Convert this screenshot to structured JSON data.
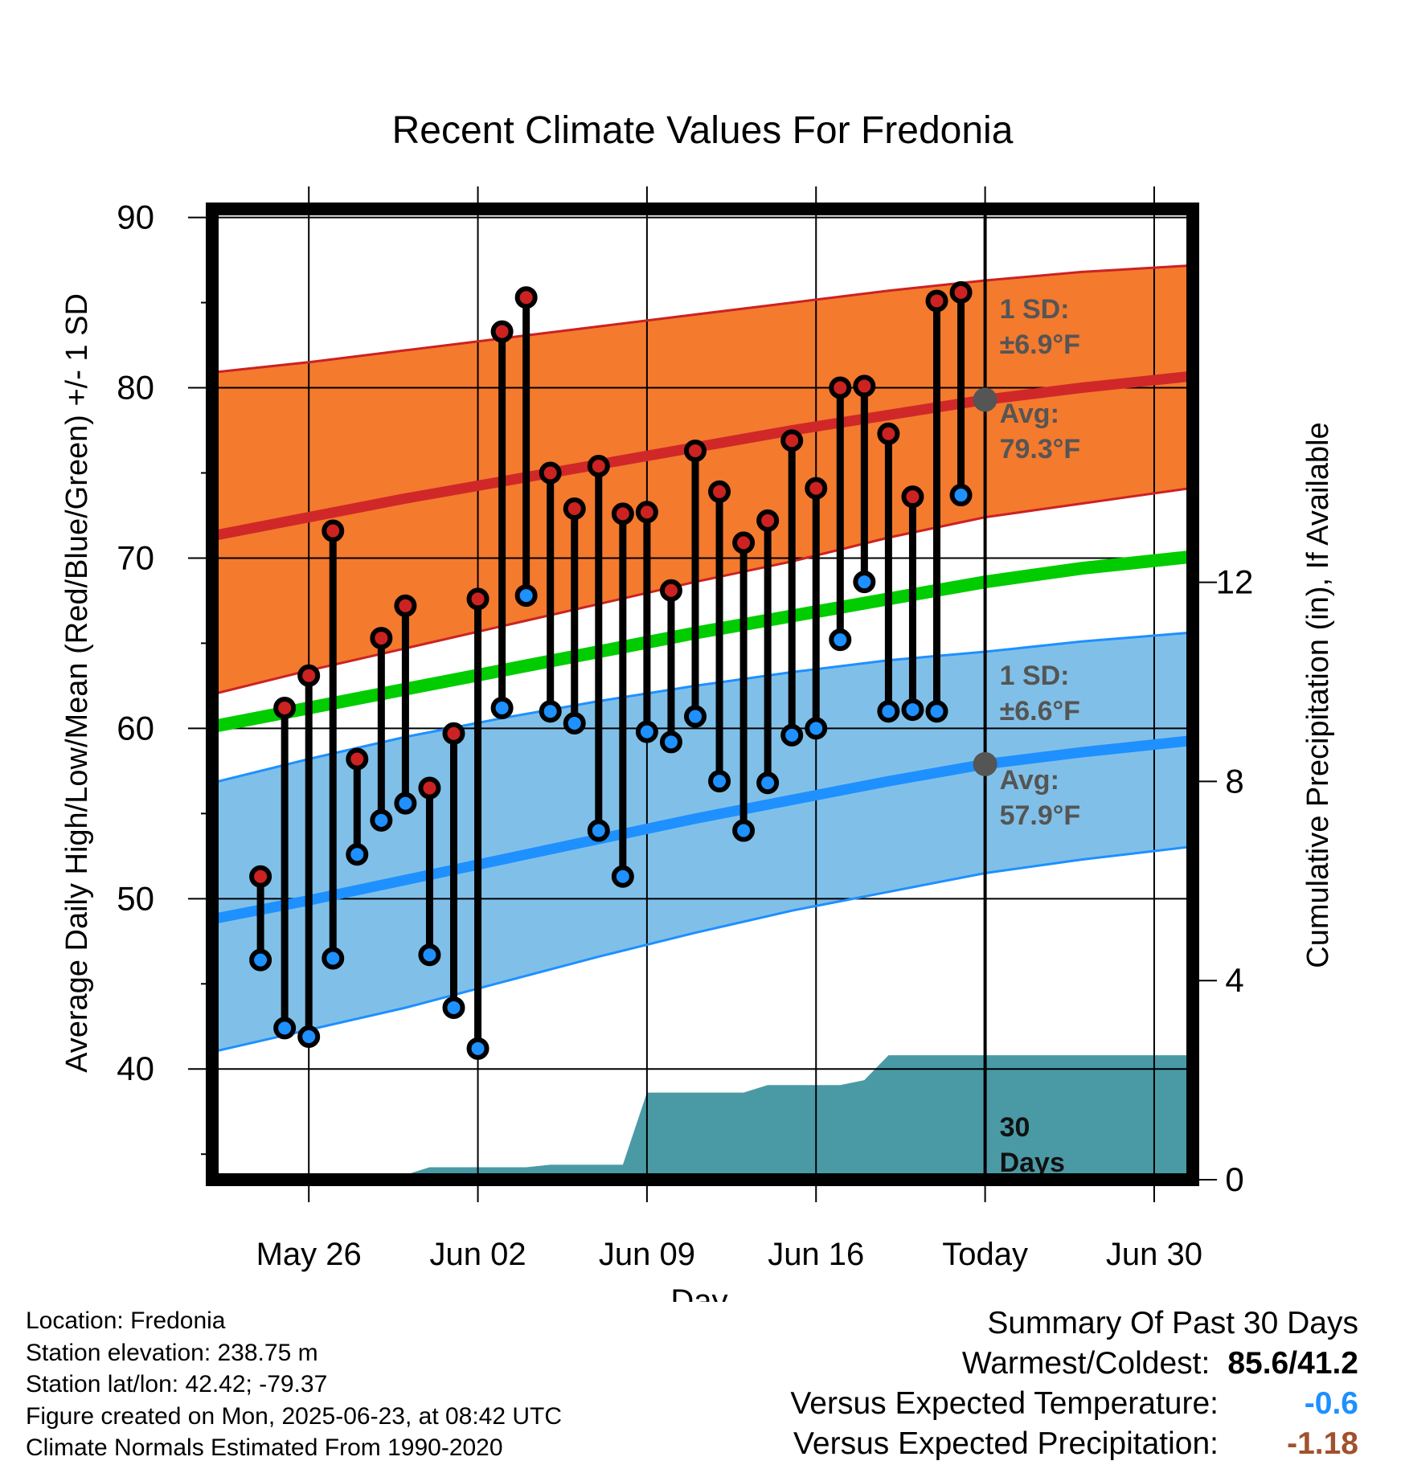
{
  "chart_data": {
    "type": "line",
    "title": "Recent Climate Values For Fredonia",
    "xlabel": "Day",
    "ylabel": "Average Daily High/Low/Mean (Red/Blue/Green) +/- 1 SD",
    "y2label": "Cumulative Precipitation (in), If Available",
    "ylim": [
      33.5,
      90.5
    ],
    "y_ticks": [
      40,
      50,
      60,
      70,
      80,
      90
    ],
    "y2lim": [
      0,
      19.5
    ],
    "y2_ticks": [
      0,
      4,
      8,
      12
    ],
    "x_range_days": [
      "May 22",
      "Jul 03"
    ],
    "x_ticks": [
      "May 26",
      "Jun 02",
      "Jun 09",
      "Jun 16",
      "Today",
      "Jun 30"
    ],
    "x_tick_dates": [
      "2025-05-26",
      "2025-06-02",
      "2025-06-09",
      "2025-06-16",
      "2025-06-23",
      "2025-06-30"
    ],
    "grid": true,
    "today": "2025-06-23",
    "daily_observations": {
      "dates": [
        "2025-05-24",
        "2025-05-25",
        "2025-05-26",
        "2025-05-27",
        "2025-05-28",
        "2025-05-29",
        "2025-05-30",
        "2025-05-31",
        "2025-06-01",
        "2025-06-02",
        "2025-06-03",
        "2025-06-04",
        "2025-06-05",
        "2025-06-06",
        "2025-06-07",
        "2025-06-08",
        "2025-06-09",
        "2025-06-10",
        "2025-06-11",
        "2025-06-12",
        "2025-06-13",
        "2025-06-14",
        "2025-06-15",
        "2025-06-16",
        "2025-06-17",
        "2025-06-18",
        "2025-06-19",
        "2025-06-20",
        "2025-06-21",
        "2025-06-22"
      ],
      "high": [
        51.3,
        61.2,
        63.1,
        71.6,
        58.2,
        65.3,
        67.2,
        56.5,
        59.7,
        67.6,
        83.3,
        85.3,
        75.0,
        72.9,
        75.4,
        72.6,
        72.7,
        68.1,
        76.3,
        73.9,
        70.9,
        72.2,
        76.9,
        74.1,
        80.0,
        80.1,
        77.3,
        73.6,
        85.1,
        85.6
      ],
      "low": [
        46.4,
        42.4,
        41.9,
        46.5,
        52.6,
        54.6,
        55.6,
        46.7,
        43.6,
        41.2,
        61.2,
        67.8,
        61.0,
        60.3,
        54.0,
        51.3,
        59.8,
        59.2,
        60.7,
        56.9,
        54.0,
        56.8,
        59.6,
        60.0,
        65.2,
        68.6,
        61.0,
        61.1,
        61.0,
        73.7
      ],
      "colors": {
        "high": "#cc2222",
        "low": "#1e90ff"
      }
    },
    "normals": {
      "dates": [
        "2025-05-22",
        "2025-05-26",
        "2025-05-30",
        "2025-06-03",
        "2025-06-07",
        "2025-06-11",
        "2025-06-15",
        "2025-06-19",
        "2025-06-23",
        "2025-06-27",
        "2025-07-03"
      ],
      "avg_high": [
        71.3,
        72.4,
        73.5,
        74.5,
        75.5,
        76.5,
        77.5,
        78.4,
        79.3,
        80.0,
        80.9
      ],
      "high_minus_sd": [
        62.0,
        63.4,
        64.7,
        66.0,
        67.3,
        68.6,
        69.8,
        71.2,
        72.4,
        73.2,
        74.4
      ],
      "high_plus_sd": [
        80.9,
        81.5,
        82.2,
        82.9,
        83.6,
        84.3,
        85.0,
        85.7,
        86.3,
        86.8,
        87.3
      ],
      "avg_mean": [
        60.1,
        61.2,
        62.3,
        63.4,
        64.5,
        65.6,
        66.6,
        67.6,
        68.6,
        69.4,
        70.3
      ],
      "avg_low": [
        48.8,
        49.9,
        51.1,
        52.3,
        53.5,
        54.7,
        55.8,
        56.9,
        57.9,
        58.6,
        59.5
      ],
      "low_minus_sd": [
        41.0,
        42.3,
        43.6,
        45.1,
        46.6,
        48.0,
        49.3,
        50.4,
        51.5,
        52.3,
        53.3
      ],
      "low_plus_sd": [
        56.8,
        58.2,
        59.5,
        60.6,
        61.6,
        62.5,
        63.3,
        64.0,
        64.5,
        65.1,
        65.8
      ],
      "colors": {
        "high_band": "#f47a2e",
        "high_line": "#d02828",
        "mean_line": "#00cc00",
        "low_band": "#80c0e8",
        "low_line": "#1e90ff",
        "low_edge": "#1e90ff",
        "high_edge": "#cc2222"
      }
    },
    "precipitation": {
      "dates": [
        "2025-05-22",
        "2025-05-24",
        "2025-05-27",
        "2025-05-28",
        "2025-05-29",
        "2025-05-30",
        "2025-05-31",
        "2025-06-01",
        "2025-06-02",
        "2025-06-03",
        "2025-06-04",
        "2025-06-05",
        "2025-06-06",
        "2025-06-07",
        "2025-06-08",
        "2025-06-09",
        "2025-06-10",
        "2025-06-11",
        "2025-06-12",
        "2025-06-13",
        "2025-06-14",
        "2025-06-15",
        "2025-06-16",
        "2025-06-17",
        "2025-06-18",
        "2025-06-19",
        "2025-06-20",
        "2025-06-21",
        "2025-06-22",
        "2025-06-23",
        "2025-07-03"
      ],
      "cumulative": [
        0,
        0,
        0,
        0.05,
        0.05,
        0.1,
        0.25,
        0.25,
        0.25,
        0.25,
        0.25,
        0.3,
        0.3,
        0.3,
        0.3,
        1.75,
        1.75,
        1.75,
        1.75,
        1.75,
        1.9,
        1.9,
        1.9,
        1.9,
        2.0,
        2.5,
        2.5,
        2.5,
        2.5,
        2.5,
        2.5
      ],
      "color": "#4a9aa5"
    },
    "annotations": {
      "high_sd_label": "1 SD:",
      "high_sd_value": "±6.9°F",
      "high_avg_label": "Avg:",
      "high_avg_value": "79.3°F",
      "low_sd_label": "1 SD:",
      "low_sd_value": "±6.6°F",
      "low_avg_label": "Avg:",
      "low_avg_value": "57.9°F",
      "window_number": "30",
      "window_label": "Days",
      "text_color": "#555555"
    }
  },
  "footer": {
    "location": "Location: Fredonia",
    "elevation": "Station elevation: 238.75 m",
    "latlon": "Station lat/lon: 42.42; -79.37",
    "created": "Figure created on Mon, 2025-06-23, at 08:42 UTC",
    "normals": "Climate Normals Estimated From 1990-2020"
  },
  "summary": {
    "title": "Summary Of Past 30 Days",
    "warmest_label": "Warmest/Coldest:",
    "warmest_value": "85.6/41.2",
    "temp_label": "Versus Expected Temperature:",
    "temp_value": "-0.6",
    "temp_color": "#1e90ff",
    "precip_label": "Versus Expected Precipitation:",
    "precip_value": "-1.18",
    "precip_color": "#a0522d"
  }
}
